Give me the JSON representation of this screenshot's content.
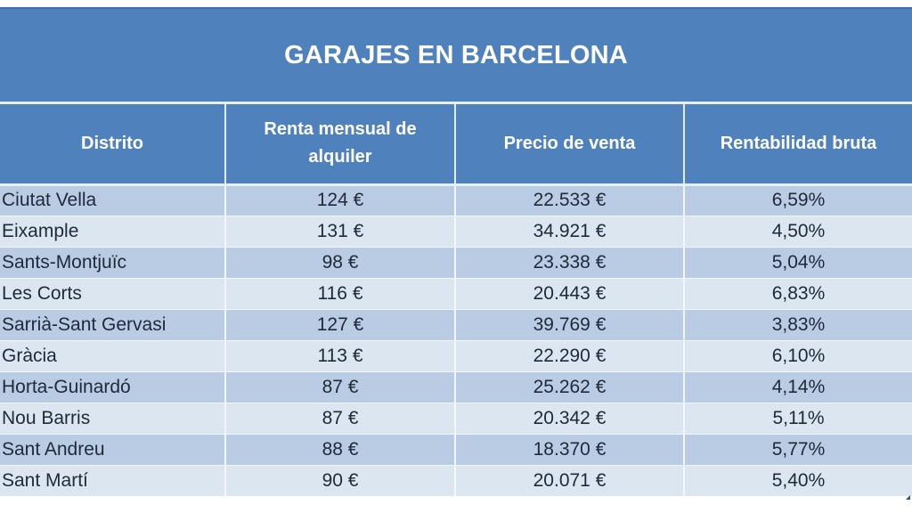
{
  "title": "GARAJES EN BARCELONA",
  "columns": [
    "Distrito",
    "Renta mensual de alquiler",
    "Precio de venta",
    "Rentabilidad bruta"
  ],
  "rows": [
    {
      "distrito": "Ciutat Vella",
      "renta": "124 €",
      "precio": "22.533 €",
      "rentabilidad": "6,59%"
    },
    {
      "distrito": "Eixample",
      "renta": "131 €",
      "precio": "34.921 €",
      "rentabilidad": "4,50%"
    },
    {
      "distrito": "Sants-Montjuïc",
      "renta": "98 €",
      "precio": "23.338 €",
      "rentabilidad": "5,04%"
    },
    {
      "distrito": "Les Corts",
      "renta": "116 €",
      "precio": "20.443 €",
      "rentabilidad": "6,83%"
    },
    {
      "distrito": "Sarrià-Sant Gervasi",
      "renta": "127 €",
      "precio": "39.769 €",
      "rentabilidad": "3,83%"
    },
    {
      "distrito": "Gràcia",
      "renta": "113 €",
      "precio": "22.290 €",
      "rentabilidad": "6,10%"
    },
    {
      "distrito": "Horta-Guinardó",
      "renta": "87 €",
      "precio": "25.262 €",
      "rentabilidad": "4,14%"
    },
    {
      "distrito": "Nou Barris",
      "renta": "87 €",
      "precio": "20.342 €",
      "rentabilidad": "5,11%"
    },
    {
      "distrito": "Sant Andreu",
      "renta": "88 €",
      "precio": "18.370 €",
      "rentabilidad": "5,77%"
    },
    {
      "distrito": "Sant Martí",
      "renta": "90 €",
      "precio": "20.071 €",
      "rentabilidad": "5,40%"
    }
  ],
  "colors": {
    "header_blue": "#4f81bd",
    "row_dark": "#b9cce4",
    "row_light": "#dce6f1"
  }
}
